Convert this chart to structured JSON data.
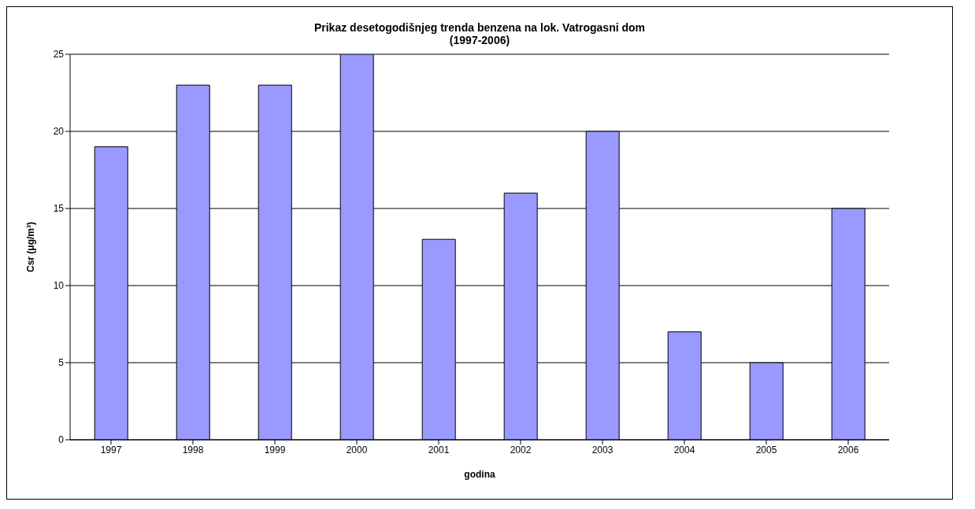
{
  "chart_data": {
    "type": "bar",
    "title": "Prikaz desetogodišnjeg trenda benzena na lok. Vatrogasni dom",
    "subtitle": "(1997-2006)",
    "xlabel": "godina",
    "ylabel": "Csr (μg/m³)",
    "categories": [
      "1997",
      "1998",
      "1999",
      "2000",
      "2001",
      "2002",
      "2003",
      "2004",
      "2005",
      "2006"
    ],
    "values": [
      19,
      23,
      23,
      25,
      13,
      16,
      20,
      7,
      5,
      15
    ],
    "color": "#9999ff",
    "ylim": [
      0,
      25
    ],
    "yticks": [
      0,
      5,
      10,
      15,
      20,
      25
    ],
    "grid": "y",
    "legend": false
  }
}
